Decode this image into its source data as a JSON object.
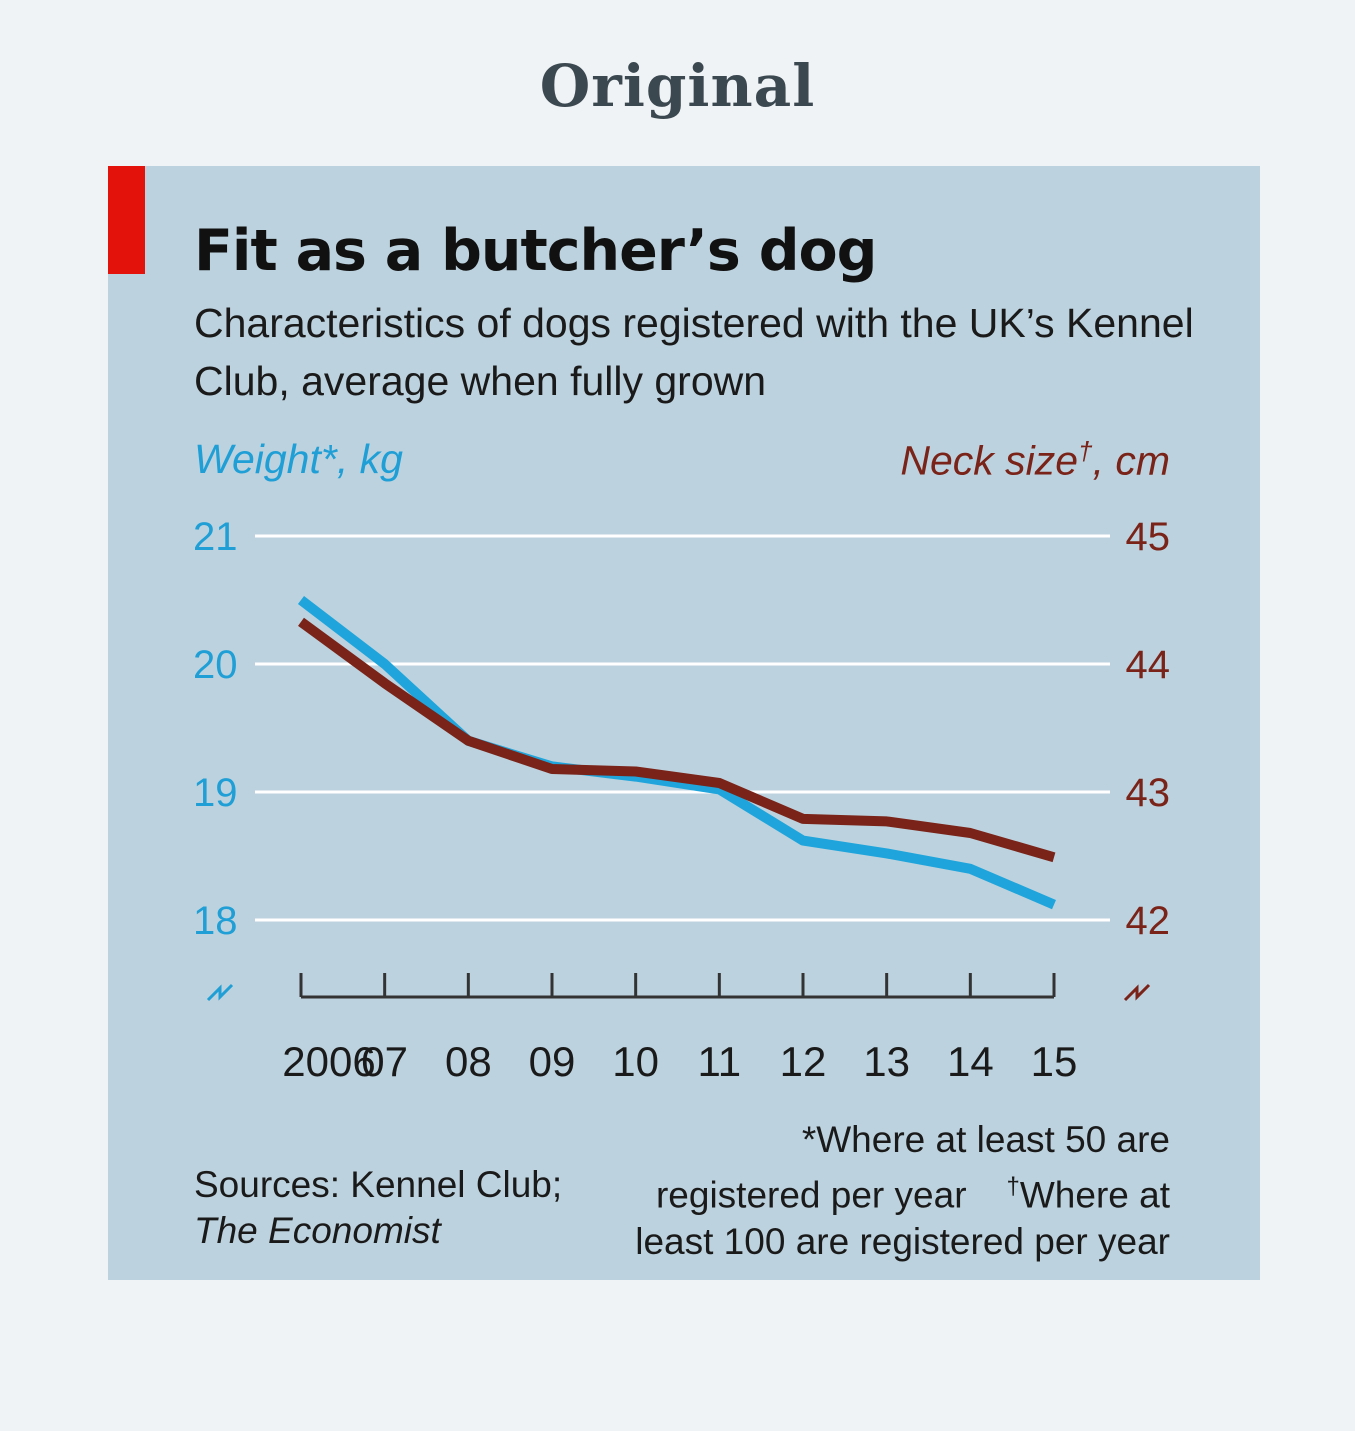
{
  "page_heading": "Original",
  "chart_data": {
    "type": "line",
    "title": "Fit as a butcher’s dog",
    "subtitle": "Characteristics of dogs registered with the UK’s Kennel Club, average when fully grown",
    "left_axis": {
      "label": "Weight*, kg",
      "ticks": [
        18,
        19,
        20,
        21
      ],
      "ylim": [
        18,
        21
      ],
      "color": "#1f9fd6"
    },
    "right_axis": {
      "label": "Neck size†, cm",
      "ticks": [
        42,
        43,
        44,
        45
      ],
      "ylim": [
        42,
        45
      ],
      "color": "#7a2318"
    },
    "x": [
      2006,
      2007,
      2008,
      2009,
      2010,
      2011,
      2012,
      2013,
      2014,
      2015
    ],
    "x_tick_labels": [
      "2006",
      "07",
      "08",
      "09",
      "10",
      "11",
      "12",
      "13",
      "14",
      "15"
    ],
    "series": [
      {
        "axis": "left",
        "color": "#1fa5dc",
        "values": [
          20.5,
          20.0,
          19.4,
          19.2,
          19.12,
          19.02,
          18.62,
          18.52,
          18.4,
          18.12
        ]
      },
      {
        "axis": "right",
        "color": "#7a2318",
        "values": [
          44.33,
          43.85,
          43.4,
          43.18,
          43.16,
          43.07,
          42.79,
          42.77,
          42.68,
          42.49
        ]
      }
    ],
    "grid": true,
    "broken_axis": true
  },
  "footer": {
    "source_line1": "Sources: Kennel Club;",
    "source_line2": "The Economist",
    "footnote_line1": "*Where at least 50 are",
    "footnote_line2a": "registered per year",
    "footnote_line2b_mark": "†",
    "footnote_line2b": "Where at",
    "footnote_line3": "least 100 are registered per year"
  }
}
